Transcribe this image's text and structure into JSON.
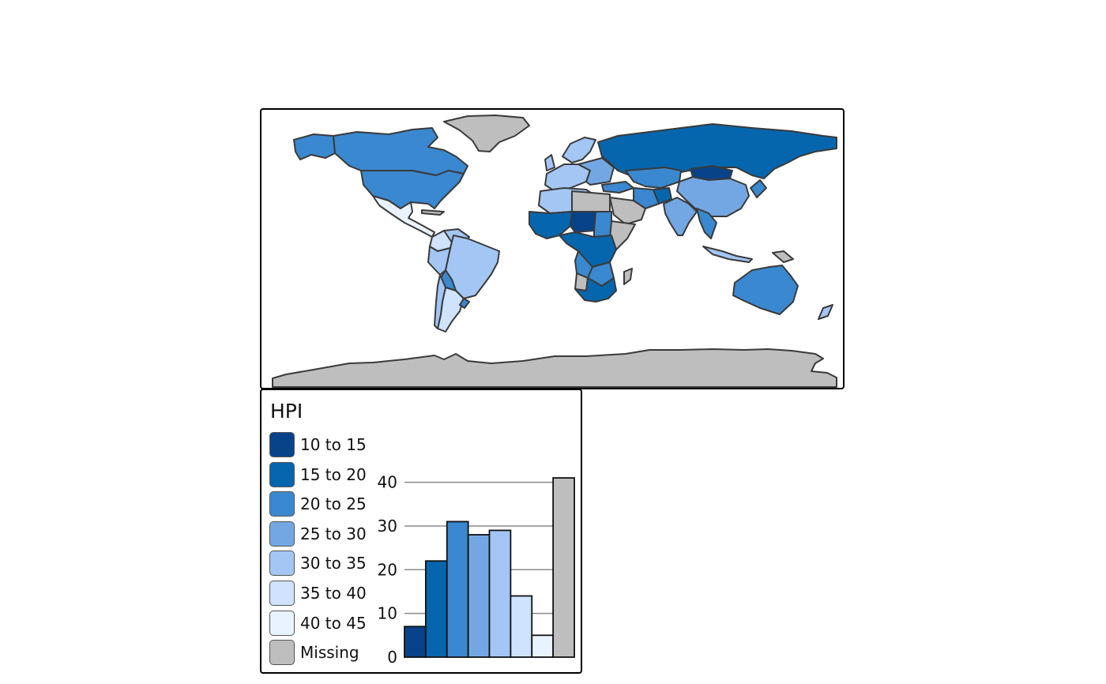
{
  "map": {
    "colors": {
      "c10_15": "#08438a",
      "c15_20": "#0566ad",
      "c20_25": "#3a88d0",
      "c25_30": "#73a7e3",
      "c30_35": "#a3c6f4",
      "c35_40": "#cfe2fe",
      "c40_45": "#e9f3ff",
      "missing": "#bebebe",
      "border": "#3a3a3a"
    }
  },
  "legend": {
    "title": "HPI",
    "items": [
      {
        "label": "10 to 15",
        "color": "#08438a"
      },
      {
        "label": "15 to 20",
        "color": "#0566ad"
      },
      {
        "label": "20 to 25",
        "color": "#3a88d0"
      },
      {
        "label": "25 to 30",
        "color": "#73a7e3"
      },
      {
        "label": "30 to 35",
        "color": "#a3c6f4"
      },
      {
        "label": "35 to 40",
        "color": "#cfe2fe"
      },
      {
        "label": "40 to 45",
        "color": "#e9f3ff"
      },
      {
        "label": "Missing",
        "color": "#bebebe"
      }
    ]
  },
  "chart_data": {
    "type": "bar",
    "categories": [
      "10 to 15",
      "15 to 20",
      "20 to 25",
      "25 to 30",
      "30 to 35",
      "35 to 40",
      "40 to 45",
      "Missing"
    ],
    "values": [
      7,
      22,
      31,
      28,
      29,
      14,
      5,
      41
    ],
    "colors": [
      "#08438a",
      "#0566ad",
      "#3a88d0",
      "#73a7e3",
      "#a3c6f4",
      "#cfe2fe",
      "#e9f3ff",
      "#bebebe"
    ],
    "y_ticks": [
      "0",
      "10",
      "20",
      "30",
      "40"
    ],
    "ylim": [
      0,
      43
    ],
    "grid": true,
    "title": "",
    "xlabel": "",
    "ylabel": ""
  }
}
